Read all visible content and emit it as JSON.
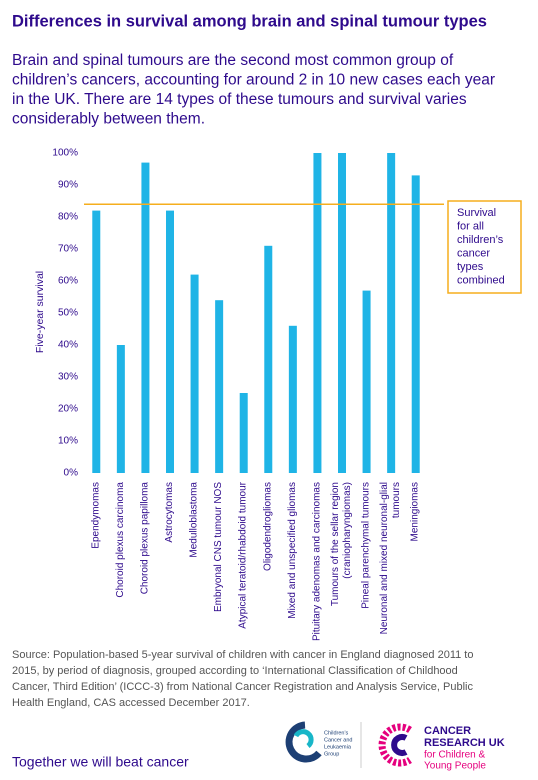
{
  "chart_data": {
    "type": "bar",
    "title": "Differences in survival among brain and spinal tumour types",
    "subtitle": [
      "Brain and spinal tumours are the second most common group of",
      "children’s cancers, accounting for around 2 in 10 new cases each year",
      "in the UK. There are 14 types of these tumours and survival varies",
      "considerably between them."
    ],
    "y_label": "Five-year survival",
    "categories": [
      "Ependymomas",
      "Choroid plexus carcinoma",
      "Choroid plexus papilloma",
      "Astrocytomas",
      "Medulloblastoma",
      "Embryonal CNS tumour NOS",
      "Atypical teratoid/rhabdoid tumour",
      "Oligodendrogliomas",
      "Mixed and unspecified gliomas",
      "Pituitary adenomas and carcinomas",
      "Tumours of the sellar region\n(craniopharyngiomas)",
      "Pineal parenchymal tumours",
      "Neuronal and mixed neuronal-glial\ntumours",
      "Meningiomas"
    ],
    "values": [
      82,
      40,
      97,
      82,
      62,
      54,
      25,
      71,
      46,
      100,
      100,
      57,
      100,
      93
    ],
    "color": "#1fb4e6",
    "ylim": [
      0,
      100
    ],
    "yticks": [
      {
        "value": 0,
        "label": "0%"
      },
      {
        "value": 10,
        "label": "10%"
      },
      {
        "value": 20,
        "label": "20%"
      },
      {
        "value": 30,
        "label": "30%"
      },
      {
        "value": 40,
        "label": "40%"
      },
      {
        "value": 50,
        "label": "50%"
      },
      {
        "value": 60,
        "label": "60%"
      },
      {
        "value": 70,
        "label": "70%"
      },
      {
        "value": 80,
        "label": "80%"
      },
      {
        "value": 90,
        "label": "90%"
      },
      {
        "value": 100,
        "label": "100%"
      }
    ],
    "reference_line": {
      "value": 84,
      "color": "#f5ae1d",
      "label": [
        "Survival",
        "for all",
        "children’s",
        "cancer",
        "types",
        "combined"
      ]
    },
    "source": [
      "Source: Population-based 5-year survival of children with cancer in England diagnosed 2011 to",
      "2015, by period of diagnosis, grouped according to ‘International Classification of Childhood",
      "Cancer, Third Edition’ (ICCC-3) from National Cancer Registration and Analysis Service, Public",
      "Health England, CAS accessed December 2017."
    ],
    "tagline": "Together we will beat cancer",
    "logos": {
      "cclg": [
        "Children's",
        "Cancer and",
        "Leukaemia",
        "Group"
      ],
      "cruk": [
        "CANCER",
        "RESEARCH UK",
        "for Children &",
        "Young People"
      ]
    }
  }
}
